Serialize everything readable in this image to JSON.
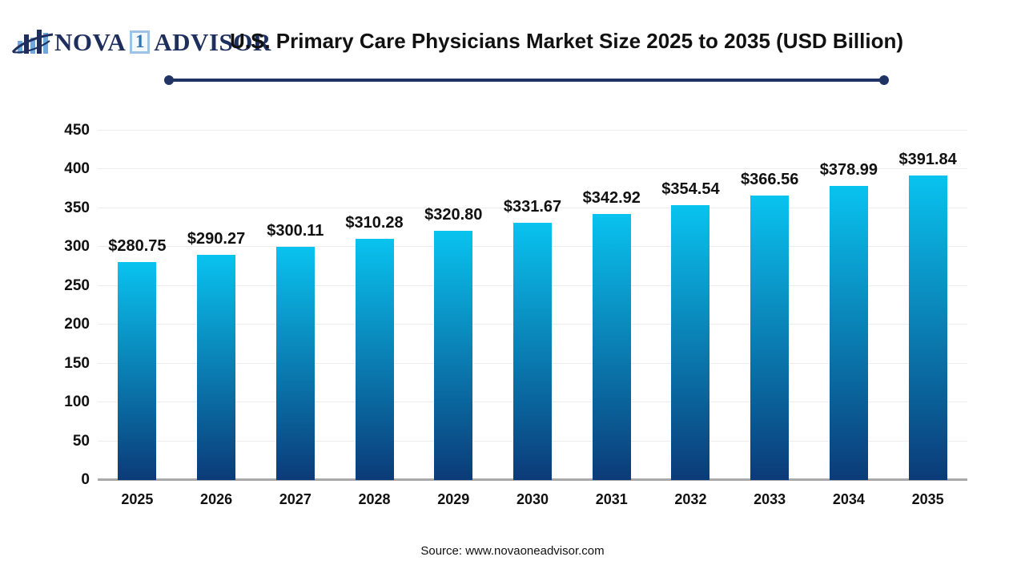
{
  "header": {
    "logo": {
      "icon": "bar-chart-swoosh-icon",
      "nova": "NOVA",
      "one": "1",
      "advisor": "ADVISOR"
    },
    "title": "U.S. Primary Care Physicians Market Size 2025 to 2035 (USD Billion)"
  },
  "chart_data": {
    "type": "bar",
    "title": "U.S. Primary Care Physicians Market Size 2025 to 2035 (USD Billion)",
    "categories": [
      "2025",
      "2026",
      "2027",
      "2028",
      "2029",
      "2030",
      "2031",
      "2032",
      "2033",
      "2034",
      "2035"
    ],
    "values": [
      280.75,
      290.27,
      300.11,
      310.28,
      320.8,
      331.67,
      342.92,
      354.54,
      366.56,
      378.99,
      391.84
    ],
    "value_labels": [
      "$280.75",
      "$290.27",
      "$300.11",
      "$310.28",
      "$320.80",
      "$331.67",
      "$342.92",
      "$354.54",
      "$366.56",
      "$378.99",
      "$391.84"
    ],
    "xlabel": "",
    "ylabel": "",
    "ylim": [
      0,
      450
    ],
    "yticks": [
      0,
      50,
      100,
      150,
      200,
      250,
      300,
      350,
      400,
      450
    ],
    "grid": true,
    "legend": "none",
    "bar_color_top": "#09c3ef",
    "bar_color_bottom": "#0b3b78"
  },
  "footer": {
    "source": "Source: www.novaoneadvisor.com"
  },
  "colors": {
    "navy": "#1e2f5e",
    "divider_navy": "#1f3364",
    "gridline": "#ececec",
    "baseline": "#a9a9a9",
    "text": "#111111",
    "logo_box_border": "#9dc3e6",
    "logo_one_blue": "#2e75b6",
    "logo_bar_light": "#6fa8dc",
    "logo_bar_dark": "#1e2f5e"
  }
}
